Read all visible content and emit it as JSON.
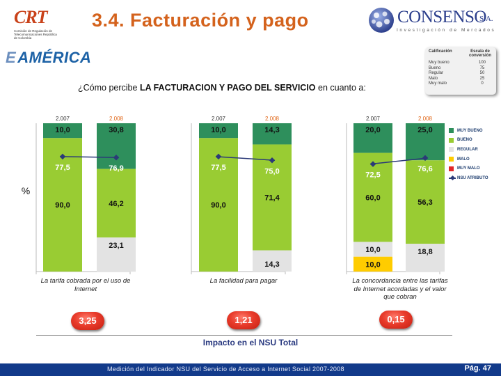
{
  "header": {
    "title": "3.4. Facturación y pago",
    "crt_logo": "CRT",
    "crt_subtitle": "Comisión de Regulación de Telecomunicaciones República de Colombia",
    "consenso_name": "CONSENSO",
    "consenso_sa": "S.A.",
    "consenso_tagline": "Investigación de Mercados",
    "client_logo": "AMÉRICA",
    "client_logo_prefix": "E"
  },
  "question": {
    "prefix": "¿Cómo percibe ",
    "bold": "LA FACTURACION Y PAGO DEL SERVICIO",
    "suffix": " en cuanto a:"
  },
  "scale": {
    "col1": "Calificación",
    "col2": "Escala de conversión",
    "rows": [
      {
        "label": "Muy bueno",
        "value": "100"
      },
      {
        "label": "Bueno",
        "value": "75"
      },
      {
        "label": "Regular",
        "value": "50"
      },
      {
        "label": "Malo",
        "value": "25"
      },
      {
        "label": "Muy malo",
        "value": "0"
      }
    ]
  },
  "colors": {
    "muy_bueno": "#2e8f5c",
    "bueno": "#99cc33",
    "regular": "#e3e3e3",
    "malo": "#ffcc00",
    "muy_malo": "#e32626",
    "nsu_line": "#2b3a78",
    "year_2007": "#333333",
    "year_2008": "#e06414"
  },
  "chart_data": {
    "type": "bar",
    "stacked": true,
    "percent": true,
    "ylabel": "%",
    "ylim": [
      0,
      100
    ],
    "legend": [
      "MUY BUENO",
      "BUENO",
      "REGULAR",
      "MALO",
      "MUY MALO",
      "NSU ATRIBUTO"
    ],
    "legend_position": "right",
    "groups": [
      {
        "caption": "La tarifa cobrada por el uso de Internet",
        "impact": "3,25",
        "bars": [
          {
            "year": "2.007",
            "muy_bueno": 10.0,
            "bueno": 90.0,
            "regular": 0,
            "malo": 0,
            "muy_malo": 0,
            "nsu": 77.5,
            "labels": {
              "muy_bueno": "10,0",
              "bueno": "90,0",
              "nsu": "77,5"
            }
          },
          {
            "year": "2.008",
            "muy_bueno": 30.8,
            "bueno": 46.2,
            "regular": 23.1,
            "malo": 0,
            "muy_malo": 0,
            "nsu": 76.9,
            "labels": {
              "muy_bueno": "30,8",
              "bueno": "46,2",
              "regular": "23,1",
              "nsu": "76,9"
            }
          }
        ]
      },
      {
        "caption": "La facilidad para pagar",
        "impact": "1,21",
        "bars": [
          {
            "year": "2.007",
            "muy_bueno": 10.0,
            "bueno": 90.0,
            "regular": 0,
            "malo": 0,
            "muy_malo": 0,
            "nsu": 77.5,
            "labels": {
              "muy_bueno": "10,0",
              "bueno": "90,0",
              "nsu": "77,5"
            }
          },
          {
            "year": "2.008",
            "muy_bueno": 14.3,
            "bueno": 71.4,
            "regular": 14.3,
            "malo": 0,
            "muy_malo": 0,
            "nsu": 75.0,
            "labels": {
              "muy_bueno": "14,3",
              "bueno": "71,4",
              "regular": "14,3",
              "nsu": "75,0"
            }
          }
        ]
      },
      {
        "caption": "La concordancia entre las tarifas de Internet acordadas y el valor que cobran",
        "impact": "0,15",
        "bars": [
          {
            "year": "2.007",
            "muy_bueno": 20.0,
            "bueno": 60.0,
            "regular": 10.0,
            "malo": 10.0,
            "muy_malo": 0,
            "nsu": 72.5,
            "labels": {
              "muy_bueno": "20,0",
              "bueno": "60,0",
              "regular": "10,0",
              "malo": "10,0",
              "nsu": "72,5"
            }
          },
          {
            "year": "2.008",
            "muy_bueno": 25.0,
            "bueno": 56.3,
            "regular": 18.8,
            "malo": 0,
            "muy_malo": 0,
            "nsu": 76.6,
            "labels": {
              "muy_bueno": "25,0",
              "bueno": "56,3",
              "regular": "18,8",
              "nsu": "76,6"
            }
          }
        ]
      }
    ]
  },
  "impact_label": "Impacto en el NSU Total",
  "footer": {
    "text": "Medición del Indicador NSU del Servicio de Acceso a Internet Social 2007-2008",
    "page": "Pág. 47"
  }
}
